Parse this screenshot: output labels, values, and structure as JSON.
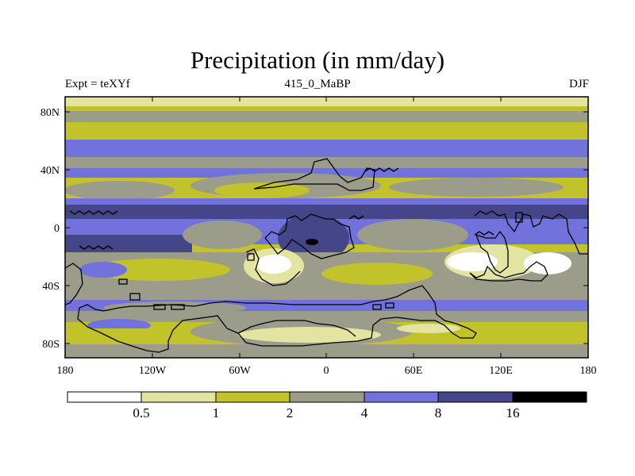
{
  "title": "Precipitation (in mm/day)",
  "left_subtitle": "Expt = teXYf",
  "center_subtitle": "415_0_MaBP",
  "right_subtitle": "DJF",
  "colors": {
    "c1": "#ffffff",
    "c2": "#e3e3a2",
    "c3": "#c2c22b",
    "c4": "#9c9c8a",
    "c5": "#7272dc",
    "c6": "#454589",
    "c7": "#000000",
    "land": "#000000"
  },
  "chart_data": {
    "type": "heatmap",
    "lon_range": [
      -180,
      180
    ],
    "lat_range": [
      -90,
      90
    ],
    "x_tick_labels": [
      "180",
      "120W",
      "60W",
      "0",
      "60E",
      "120E",
      "180"
    ],
    "y_tick_labels": [
      "80N",
      "40N",
      "0",
      "40S",
      "80S"
    ],
    "colorbar": {
      "levels": [
        "0.5",
        "1",
        "2",
        "4",
        "8",
        "16"
      ]
    }
  }
}
